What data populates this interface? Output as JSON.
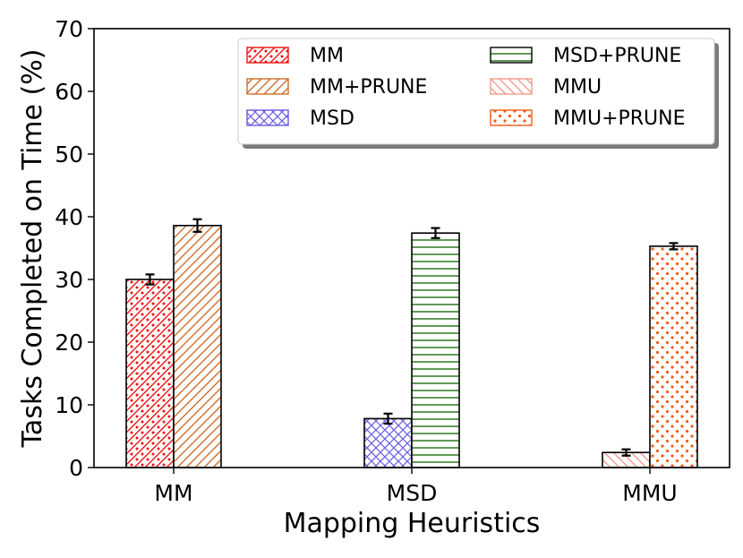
{
  "chart_data": {
    "type": "bar",
    "title": "",
    "xlabel": "Mapping Heuristics",
    "ylabel": "Tasks Completed on Time (%)",
    "ylim": [
      0,
      70
    ],
    "yticks": [
      0,
      10,
      20,
      30,
      40,
      50,
      60,
      70
    ],
    "categories": [
      "MM",
      "MSD",
      "MMU"
    ],
    "legend_position": "top-right",
    "grid": false,
    "bars": [
      {
        "series": "MM",
        "category": "MM",
        "value": 30.0,
        "error": 0.8,
        "color": "#ee1111",
        "pattern": "dots-diag"
      },
      {
        "series": "MM+PRUNE",
        "category": "MM",
        "value": 38.6,
        "error": 1.0,
        "color": "#cc6e2a",
        "pattern": "diag-fwd"
      },
      {
        "series": "MSD",
        "category": "MSD",
        "value": 7.8,
        "error": 0.8,
        "color": "#6a5ce0",
        "pattern": "crosshatch"
      },
      {
        "series": "MSD+PRUNE",
        "category": "MSD",
        "value": 37.4,
        "error": 0.8,
        "color": "#1e6e12",
        "pattern": "horizontal"
      },
      {
        "series": "MMU",
        "category": "MMU",
        "value": 2.4,
        "error": 0.5,
        "color": "#f29a8a",
        "pattern": "diag-back"
      },
      {
        "series": "MMU+PRUNE",
        "category": "MMU",
        "value": 35.3,
        "error": 0.5,
        "color": "#f25c1a",
        "pattern": "dots"
      }
    ],
    "legend": [
      {
        "label": "MM",
        "color": "#ee1111",
        "pattern": "dots-diag"
      },
      {
        "label": "MM+PRUNE",
        "color": "#cc6e2a",
        "pattern": "diag-fwd"
      },
      {
        "label": "MSD",
        "color": "#6a5ce0",
        "pattern": "crosshatch"
      },
      {
        "label": "MSD+PRUNE",
        "color": "#1e6e12",
        "pattern": "horizontal"
      },
      {
        "label": "MMU",
        "color": "#f29a8a",
        "pattern": "diag-back"
      },
      {
        "label": "MMU+PRUNE",
        "color": "#f25c1a",
        "pattern": "dots"
      }
    ]
  }
}
